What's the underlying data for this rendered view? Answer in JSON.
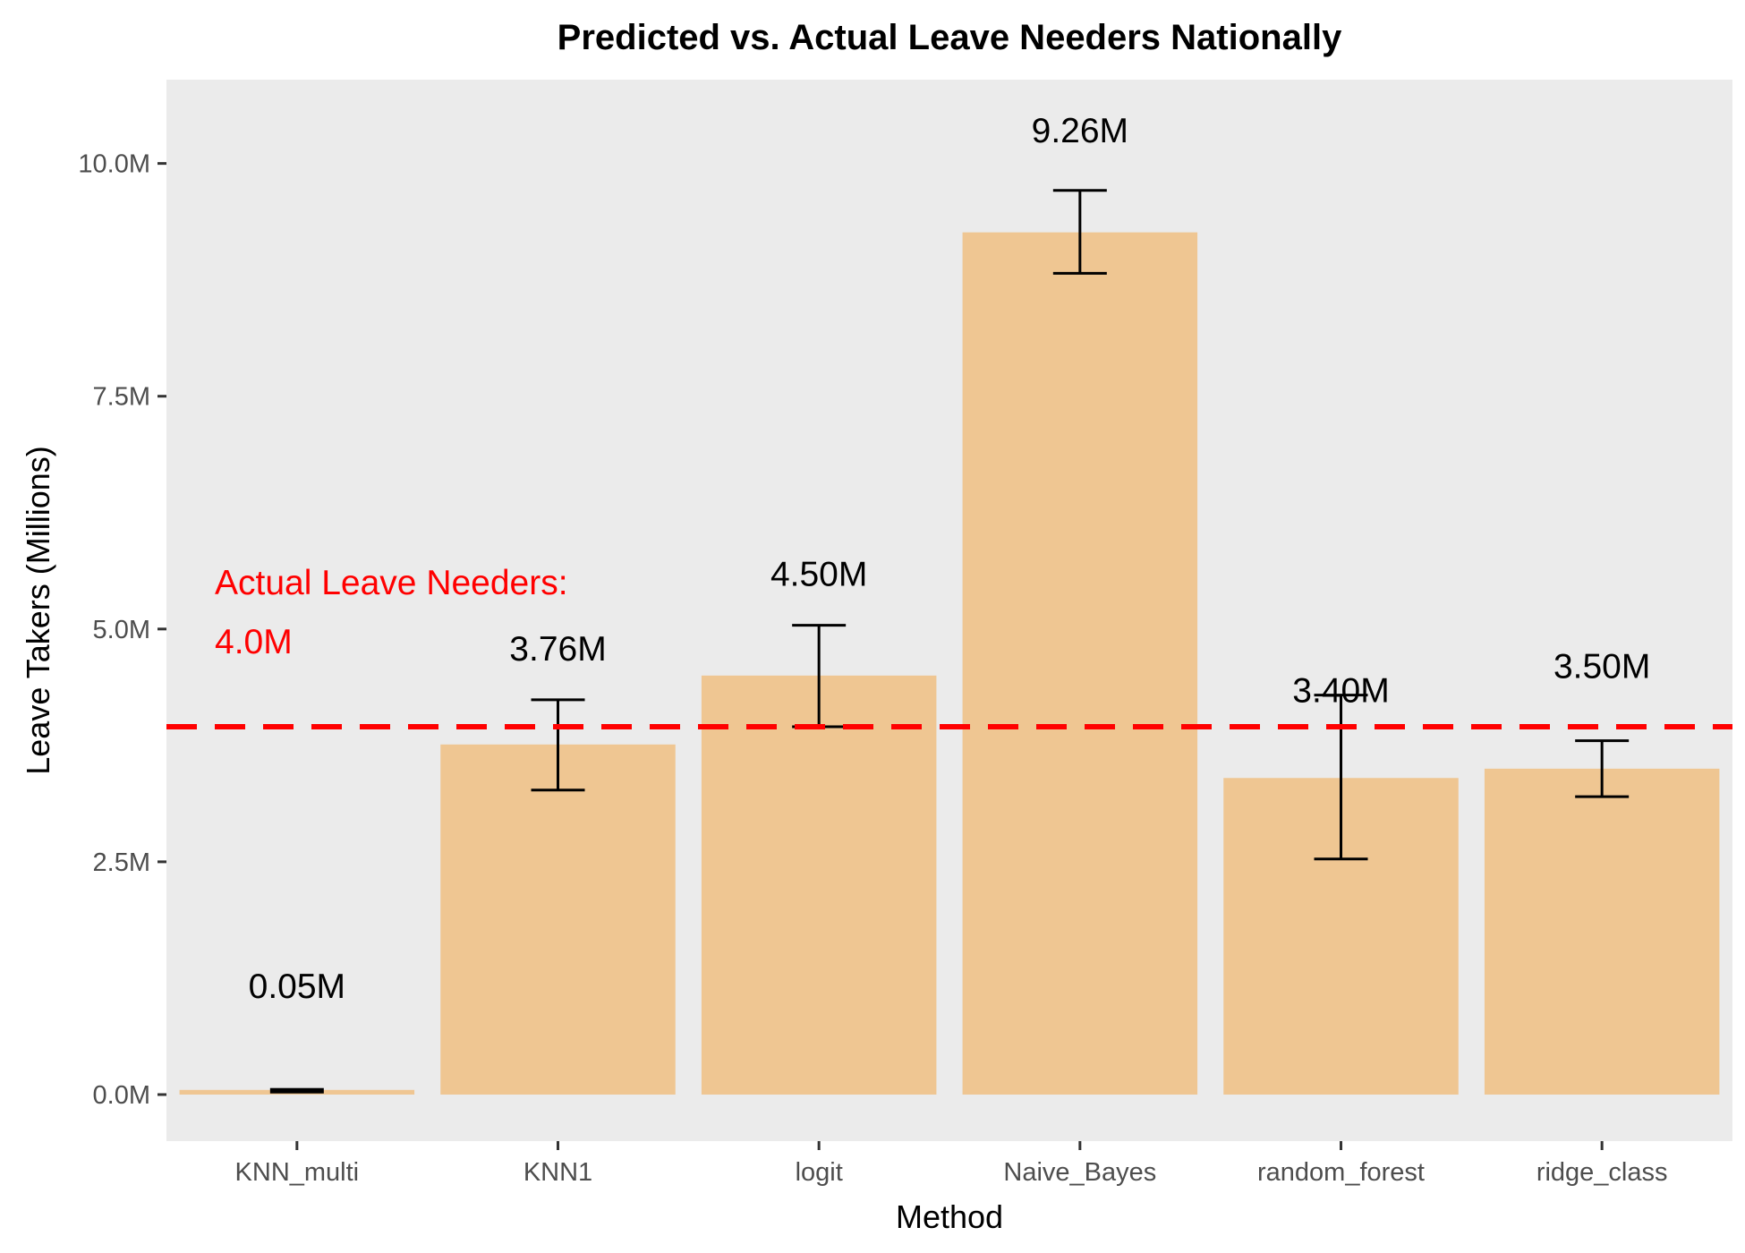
{
  "chart_data": {
    "type": "bar",
    "title": "Predicted vs. Actual Leave Needers Nationally",
    "xlabel": "Method",
    "ylabel": "Leave Takers (Millions)",
    "ylim": [
      -0.5,
      10.9
    ],
    "yticks": [
      0,
      2.5,
      5,
      7.5,
      10
    ],
    "ytick_labels": [
      "0.0M",
      "2.5M",
      "5.0M",
      "7.5M",
      "10.0M"
    ],
    "categories": [
      "KNN_multi",
      "KNN1",
      "logit",
      "Naive_Bayes",
      "random_forest",
      "ridge_class"
    ],
    "values": [
      0.05,
      3.76,
      4.5,
      9.26,
      3.4,
      3.5
    ],
    "value_labels": [
      "0.05M",
      "3.76M",
      "4.50M",
      "9.26M",
      "3.40M",
      "3.50M"
    ],
    "error_low": [
      0.04,
      3.27,
      3.95,
      8.82,
      2.53,
      3.2
    ],
    "error_high": [
      0.07,
      4.24,
      5.04,
      9.71,
      4.29,
      3.8
    ],
    "reference_line": {
      "value": 3.95,
      "label_line1": "Actual Leave Needers:",
      "label_line2": "4.0M",
      "color": "#ff0000"
    },
    "bar_color": "#efc692",
    "panel_color": "#ebebeb",
    "grid": false,
    "legend": "none"
  }
}
